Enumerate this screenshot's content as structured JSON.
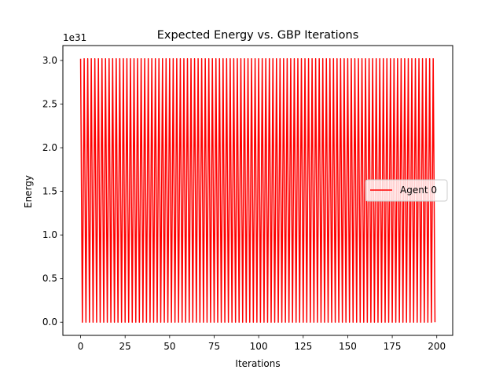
{
  "chart_data": {
    "type": "line",
    "title": "Expected Energy vs. GBP Iterations",
    "xlabel": "Iterations",
    "ylabel": "Energy",
    "y_offset_text": "1e31",
    "y_scale_exponent": 31,
    "xlim": [
      -9.95,
      208.95
    ],
    "ylim": [
      -0.151,
      3.171
    ],
    "x_ticks": [
      0,
      25,
      50,
      75,
      100,
      125,
      150,
      175,
      200
    ],
    "y_ticks": [
      0.0,
      0.5,
      1.0,
      1.5,
      2.0,
      2.5,
      3.0
    ],
    "y_tick_labels": [
      "0.0",
      "0.5",
      "1.0",
      "1.5",
      "2.0",
      "2.5",
      "3.0"
    ],
    "grid": false,
    "legend_position": "center-right",
    "series": [
      {
        "name": "Agent 0",
        "color": "#ff0000",
        "pattern": "alternating",
        "x_start": 0,
        "x_end": 199,
        "high_value": 3.02,
        "low_value": 0.0,
        "start_high": true
      }
    ]
  }
}
